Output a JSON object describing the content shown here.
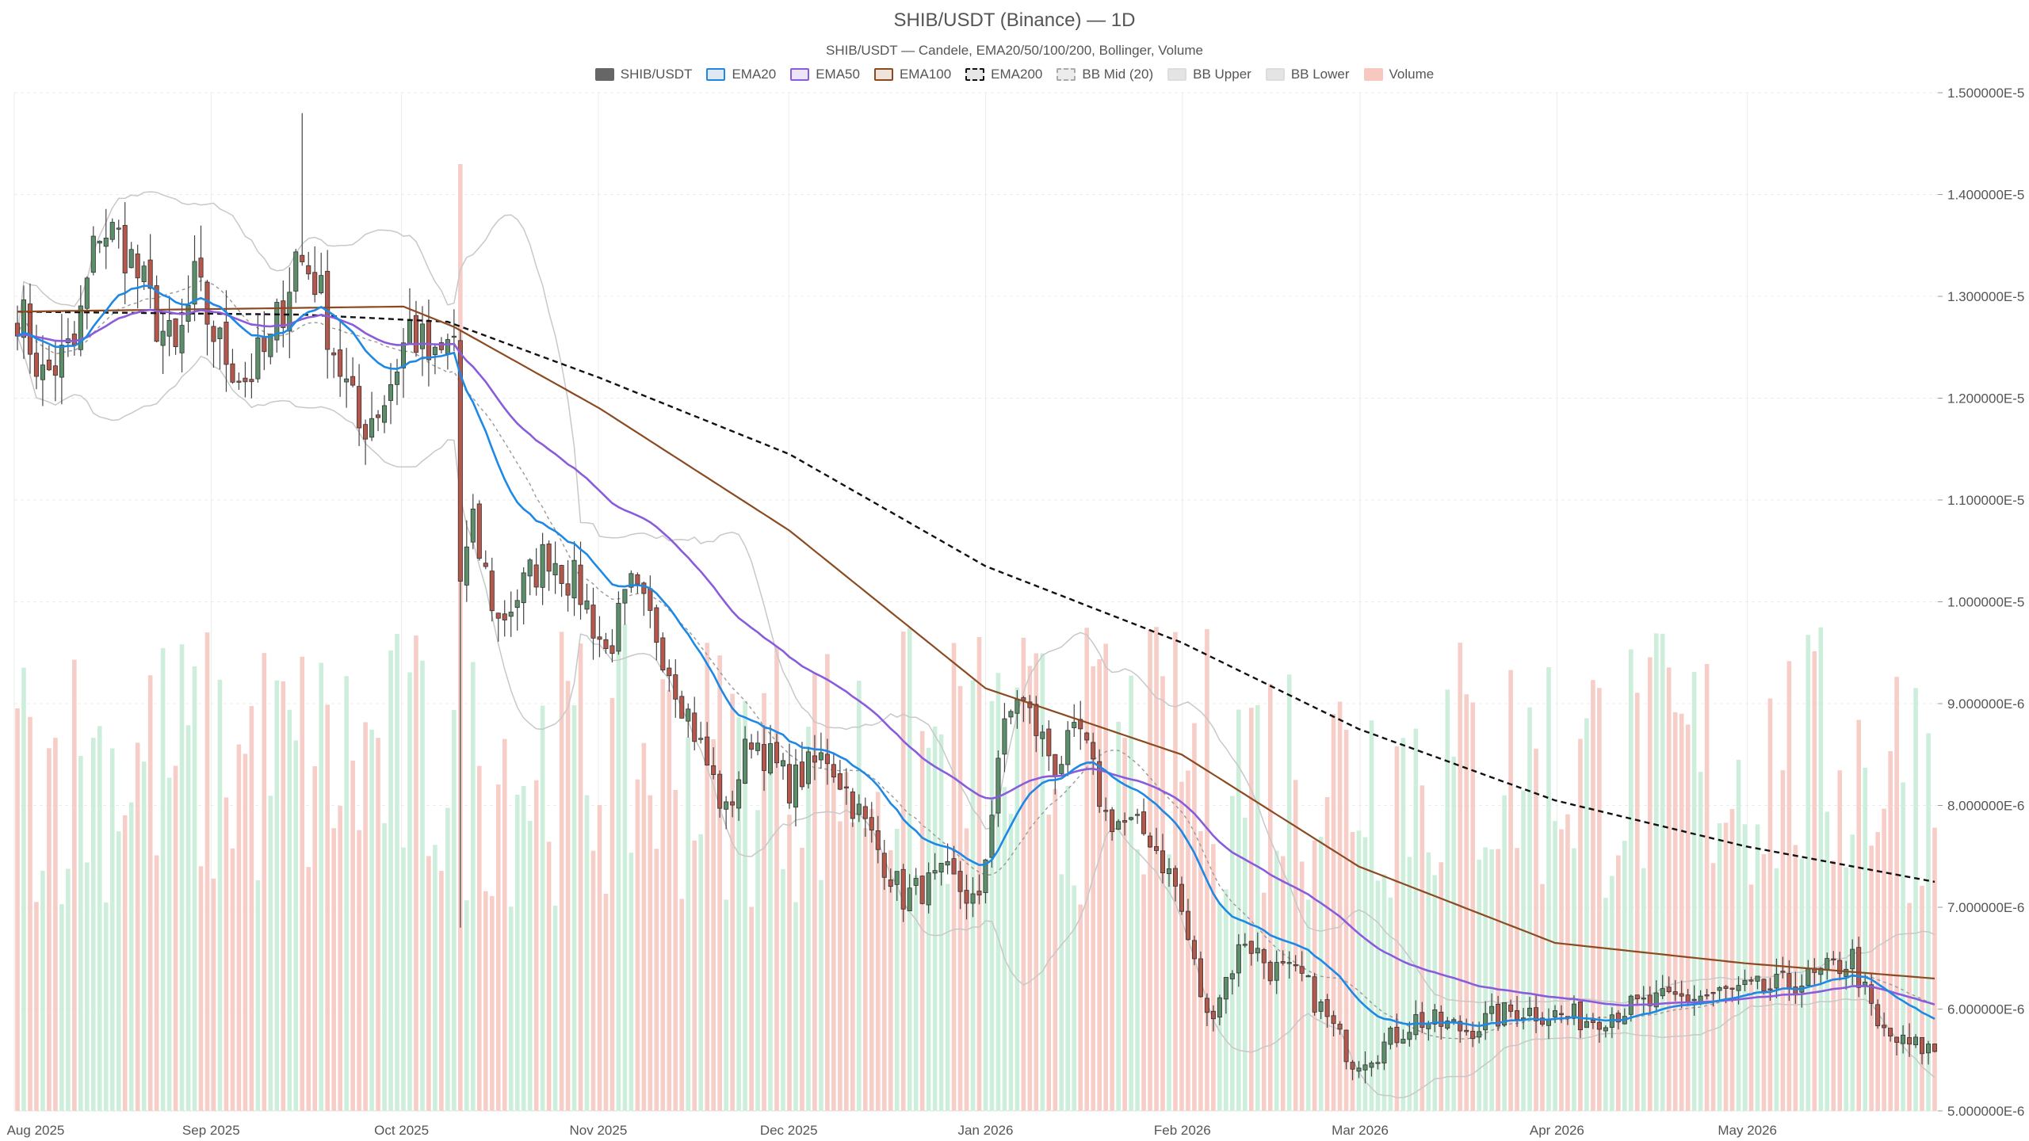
{
  "chart_data": {
    "type": "candlestick",
    "title": "SHIB/USDT (Binance) — 1D",
    "subtitle": "SHIB/USDT — Candele, EMA20/50/100/200, Bollinger, Volume",
    "legend": [
      {
        "name": "SHIB/USDT",
        "fill": "#666666",
        "stroke": "#666666",
        "dash": false
      },
      {
        "name": "EMA20",
        "fill": "#e0e8f2",
        "stroke": "#1e88e5",
        "dash": false
      },
      {
        "name": "EMA50",
        "fill": "#ece4f7",
        "stroke": "#8a5cdb",
        "dash": false
      },
      {
        "name": "EMA100",
        "fill": "#efe3da",
        "stroke": "#8b4a22",
        "dash": false
      },
      {
        "name": "EMA200",
        "fill": "#e6e6e6",
        "stroke": "#111111",
        "dash": true
      },
      {
        "name": "BB Mid (20)",
        "fill": "#ececec",
        "stroke": "#aaaaaa",
        "dash": true
      },
      {
        "name": "BB Upper",
        "fill": "#e4e4e4",
        "stroke": "#dddddd",
        "dash": false
      },
      {
        "name": "BB Lower",
        "fill": "#e4e4e4",
        "stroke": "#dddddd",
        "dash": false
      },
      {
        "name": "Volume",
        "fill": "#f6c8c0",
        "stroke": "#f6c8c0",
        "dash": false
      }
    ],
    "y_axis": {
      "min": 5e-06,
      "max": 1.5e-05,
      "position": "right",
      "ticks": [
        {
          "value": 1.5e-05,
          "label": "1.500000E-5"
        },
        {
          "value": 1.4e-05,
          "label": "1.400000E-5"
        },
        {
          "value": 1.3e-05,
          "label": "1.300000E-5"
        },
        {
          "value": 1.2e-05,
          "label": "1.200000E-5"
        },
        {
          "value": 1.1e-05,
          "label": "1.100000E-5"
        },
        {
          "value": 1e-05,
          "label": "1.000000E-5"
        },
        {
          "value": 9e-06,
          "label": "9.000000E-6"
        },
        {
          "value": 8e-06,
          "label": "8.000000E-6"
        },
        {
          "value": 7e-06,
          "label": "7.000000E-6"
        },
        {
          "value": 6e-06,
          "label": "6.000000E-6"
        },
        {
          "value": 5e-06,
          "label": "5.000000E-6"
        }
      ]
    },
    "x_axis": {
      "start": "2025-08-01",
      "end": "2026-05-31",
      "ticks": [
        {
          "date": "2025-08-01",
          "label": "Aug 2025"
        },
        {
          "date": "2025-09-01",
          "label": "Sep 2025"
        },
        {
          "date": "2025-10-01",
          "label": "Oct 2025"
        },
        {
          "date": "2025-11-01",
          "label": "Nov 2025"
        },
        {
          "date": "2025-12-01",
          "label": "Dec 2025"
        },
        {
          "date": "2026-01-01",
          "label": "Jan 2026"
        },
        {
          "date": "2026-02-01",
          "label": "Feb 2026"
        },
        {
          "date": "2026-03-01",
          "label": "Mar 2026"
        },
        {
          "date": "2026-04-01",
          "label": "Apr 2026"
        },
        {
          "date": "2026-05-01",
          "label": "May 2026"
        }
      ]
    },
    "price_anchors": [
      [
        "2025-08-01",
        12.9
      ],
      [
        "2025-08-05",
        12.2
      ],
      [
        "2025-08-10",
        12.5
      ],
      [
        "2025-08-14",
        13.7
      ],
      [
        "2025-08-18",
        13.5
      ],
      [
        "2025-08-22",
        12.9
      ],
      [
        "2025-08-26",
        12.4
      ],
      [
        "2025-08-29",
        13.1
      ],
      [
        "2025-09-02",
        12.5
      ],
      [
        "2025-09-06",
        12.2
      ],
      [
        "2025-09-10",
        12.5
      ],
      [
        "2025-09-14",
        13.4
      ],
      [
        "2025-09-17",
        13.2
      ],
      [
        "2025-09-20",
        12.5
      ],
      [
        "2025-09-24",
        11.7
      ],
      [
        "2025-09-28",
        12.0
      ],
      [
        "2025-10-02",
        12.7
      ],
      [
        "2025-10-06",
        12.3
      ],
      [
        "2025-10-09",
        12.6
      ],
      [
        "2025-10-10",
        10.2
      ],
      [
        "2025-10-12",
        10.7
      ],
      [
        "2025-10-16",
        9.8
      ],
      [
        "2025-10-24",
        10.5
      ],
      [
        "2025-10-29",
        10.1
      ],
      [
        "2025-11-02",
        9.5
      ],
      [
        "2025-11-06",
        10.1
      ],
      [
        "2025-11-10",
        9.7
      ],
      [
        "2025-11-15",
        8.9
      ],
      [
        "2025-11-21",
        7.9
      ],
      [
        "2025-11-25",
        8.7
      ],
      [
        "2025-12-01",
        8.2
      ],
      [
        "2025-12-07",
        8.5
      ],
      [
        "2025-12-13",
        7.8
      ],
      [
        "2025-12-19",
        7.1
      ],
      [
        "2025-12-26",
        7.3
      ],
      [
        "2025-12-31",
        7.0
      ],
      [
        "2026-01-03",
        8.5
      ],
      [
        "2026-01-06",
        9.1
      ],
      [
        "2026-01-12",
        8.4
      ],
      [
        "2026-01-16",
        8.7
      ],
      [
        "2026-01-20",
        7.9
      ],
      [
        "2026-01-27",
        7.7
      ],
      [
        "2026-01-31",
        7.2
      ],
      [
        "2026-02-05",
        5.9
      ],
      [
        "2026-02-11",
        6.7
      ],
      [
        "2026-02-15",
        6.4
      ],
      [
        "2026-02-20",
        6.3
      ],
      [
        "2026-02-28",
        5.5
      ],
      [
        "2026-03-04",
        5.6
      ],
      [
        "2026-03-10",
        5.9
      ],
      [
        "2026-03-18",
        5.8
      ],
      [
        "2026-03-26",
        6.0
      ],
      [
        "2026-04-06",
        5.9
      ],
      [
        "2026-04-12",
        6.0
      ],
      [
        "2026-04-20",
        6.1
      ],
      [
        "2026-04-27",
        6.15
      ],
      [
        "2026-05-05",
        6.2
      ],
      [
        "2026-05-12",
        6.3
      ],
      [
        "2026-05-18",
        6.5
      ],
      [
        "2026-05-22",
        5.8
      ],
      [
        "2026-05-26",
        5.65
      ],
      [
        "2026-05-31",
        5.6
      ]
    ],
    "ema200_anchors": [
      [
        "2025-08-01",
        12.85
      ],
      [
        "2025-09-15",
        12.82
      ],
      [
        "2025-10-08",
        12.75
      ],
      [
        "2025-11-01",
        12.2
      ],
      [
        "2025-12-01",
        11.45
      ],
      [
        "2026-01-01",
        10.35
      ],
      [
        "2026-02-01",
        9.6
      ],
      [
        "2026-03-01",
        8.75
      ],
      [
        "2026-04-01",
        8.05
      ],
      [
        "2026-05-01",
        7.6
      ],
      [
        "2026-05-31",
        7.25
      ]
    ],
    "ema100_anchors": [
      [
        "2025-08-01",
        12.85
      ],
      [
        "2025-10-01",
        12.9
      ],
      [
        "2025-10-09",
        12.7
      ],
      [
        "2025-11-01",
        11.9
      ],
      [
        "2025-12-01",
        10.7
      ],
      [
        "2026-01-01",
        9.15
      ],
      [
        "2026-02-01",
        8.5
      ],
      [
        "2026-03-01",
        7.4
      ],
      [
        "2026-04-01",
        6.65
      ],
      [
        "2026-05-01",
        6.45
      ],
      [
        "2026-05-31",
        6.3
      ]
    ],
    "volume_scale_max": 1e-05,
    "colors": {
      "up": "#5a8f6a",
      "down": "#b5574a",
      "vol_up": "#cdeedb",
      "vol_down": "#f6cdc7",
      "grid": "#ececec",
      "bb": "#c8c8c8"
    }
  }
}
